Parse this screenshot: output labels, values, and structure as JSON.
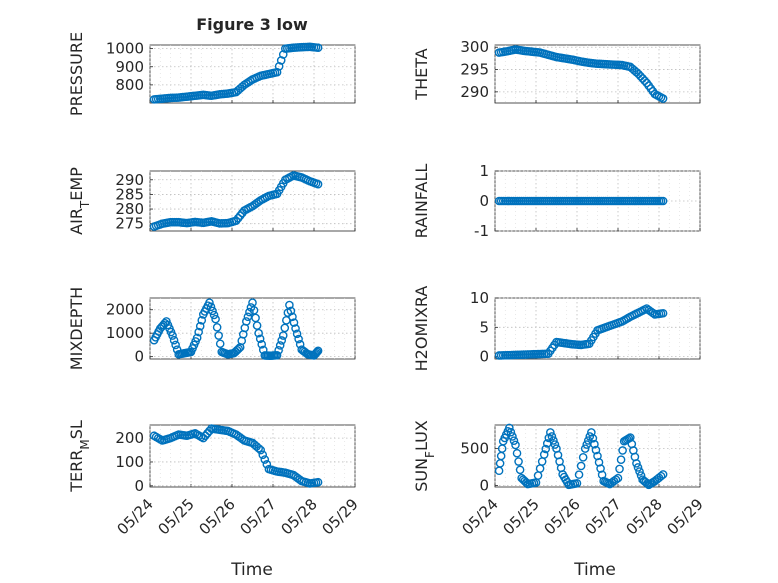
{
  "figure": {
    "title": "Figure 3 low",
    "xlabel": "Time",
    "color": "#0072bd"
  },
  "chart_data": [
    {
      "type": "scatter",
      "name": "pressure",
      "position": "left-1",
      "title": "Figure 3 low",
      "xlabel": "",
      "ylabel": "PRESSURE",
      "ylim": [
        700,
        1020
      ],
      "yticks": [
        800,
        900,
        1000
      ],
      "x": [
        0.1,
        0.3,
        0.5,
        0.7,
        0.9,
        1.1,
        1.3,
        1.5,
        1.7,
        1.9,
        2.1,
        2.3,
        2.5,
        2.7,
        2.9,
        3.1,
        3.3,
        3.5,
        3.7,
        3.9,
        4.1
      ],
      "y": [
        720,
        724,
        728,
        730,
        735,
        740,
        745,
        740,
        748,
        752,
        760,
        800,
        830,
        850,
        860,
        870,
        1000,
        1005,
        1008,
        1010,
        1005
      ]
    },
    {
      "type": "scatter",
      "name": "theta",
      "position": "right-1",
      "title": "",
      "xlabel": "",
      "ylabel": "THETA",
      "ylim": [
        287.5,
        300.5
      ],
      "yticks": [
        290,
        295,
        300
      ],
      "x": [
        0.1,
        0.3,
        0.5,
        0.7,
        0.9,
        1.1,
        1.3,
        1.5,
        1.7,
        1.9,
        2.1,
        2.3,
        2.5,
        2.7,
        2.9,
        3.1,
        3.3,
        3.5,
        3.7,
        3.9,
        4.1
      ],
      "y": [
        298.8,
        299.1,
        299.5,
        299.2,
        299.0,
        298.8,
        298.3,
        297.8,
        297.5,
        297.2,
        296.8,
        296.5,
        296.3,
        296.2,
        296.1,
        296.0,
        295.6,
        294.0,
        292.0,
        289.5,
        288.5
      ]
    },
    {
      "type": "scatter",
      "name": "air-temp",
      "position": "left-2",
      "title": "",
      "xlabel": "",
      "ylabel": "AIR_TEMP",
      "ylim": [
        272.5,
        293
      ],
      "yticks": [
        275,
        280,
        285,
        290
      ],
      "x": [
        0.1,
        0.3,
        0.5,
        0.7,
        0.9,
        1.1,
        1.3,
        1.5,
        1.7,
        1.9,
        2.1,
        2.3,
        2.5,
        2.7,
        2.9,
        3.1,
        3.3,
        3.5,
        3.7,
        3.9,
        4.1
      ],
      "y": [
        274,
        275,
        275.5,
        275.5,
        275.2,
        275.6,
        275.3,
        275.8,
        275.1,
        275.2,
        276,
        279.5,
        281,
        283,
        284.5,
        285.2,
        290,
        291.5,
        290.8,
        289.5,
        288.5
      ]
    },
    {
      "type": "scatter",
      "name": "rainfall",
      "position": "right-2",
      "title": "",
      "xlabel": "",
      "ylabel": "RAINFALL",
      "ylim": [
        -1,
        1
      ],
      "yticks": [
        -1,
        0,
        1
      ],
      "x": [
        0.1,
        0.3,
        0.5,
        0.7,
        0.9,
        1.1,
        1.3,
        1.5,
        1.7,
        1.9,
        2.1,
        2.3,
        2.5,
        2.7,
        2.9,
        3.1,
        3.3,
        3.5,
        3.7,
        3.9,
        4.1
      ],
      "y": [
        0,
        0,
        0,
        0,
        0,
        0,
        0,
        0,
        0,
        0,
        0,
        0,
        0,
        0,
        0,
        0,
        0,
        0,
        0,
        0,
        0
      ]
    },
    {
      "type": "scatter",
      "name": "mixdepth",
      "position": "left-3",
      "title": "",
      "xlabel": "",
      "ylabel": "MIXDEPTH",
      "ylim": [
        -100,
        2500
      ],
      "yticks": [
        0,
        1000,
        2000
      ],
      "x": [
        0.1,
        0.25,
        0.4,
        0.55,
        0.7,
        0.85,
        1.0,
        1.15,
        1.3,
        1.45,
        1.6,
        1.75,
        1.9,
        2.05,
        2.2,
        2.35,
        2.5,
        2.65,
        2.8,
        2.95,
        3.1,
        3.25,
        3.4,
        3.55,
        3.7,
        3.85,
        4.0,
        4.1
      ],
      "y": [
        700,
        1200,
        1500,
        900,
        100,
        150,
        200,
        800,
        1800,
        2300,
        1600,
        200,
        100,
        150,
        400,
        1500,
        2300,
        1000,
        50,
        40,
        60,
        900,
        2200,
        1200,
        300,
        100,
        50,
        250
      ]
    },
    {
      "type": "scatter",
      "name": "h2omixra",
      "position": "right-3",
      "title": "",
      "xlabel": "",
      "ylabel": "H2OMIXRA",
      "ylim": [
        -0.4,
        10
      ],
      "yticks": [
        0,
        5,
        10
      ],
      "x": [
        0.1,
        0.3,
        0.5,
        0.7,
        0.9,
        1.1,
        1.3,
        1.5,
        1.7,
        1.9,
        2.1,
        2.3,
        2.5,
        2.7,
        2.9,
        3.1,
        3.3,
        3.5,
        3.7,
        3.9,
        4.1
      ],
      "y": [
        0.2,
        0.25,
        0.3,
        0.35,
        0.4,
        0.45,
        0.5,
        2.5,
        2.3,
        2.1,
        2.0,
        2.2,
        4.5,
        5.0,
        5.5,
        6.0,
        6.8,
        7.5,
        8.2,
        7.2,
        7.4
      ]
    },
    {
      "type": "scatter",
      "name": "terr-msl",
      "position": "left-4",
      "title": "",
      "xlabel": "",
      "ylabel": "TERR_MSL",
      "ylim": [
        -5,
        255
      ],
      "yticks": [
        0,
        100,
        200
      ],
      "x": [
        0.1,
        0.3,
        0.5,
        0.7,
        0.9,
        1.1,
        1.3,
        1.5,
        1.7,
        1.9,
        2.1,
        2.3,
        2.5,
        2.7,
        2.9,
        3.1,
        3.3,
        3.5,
        3.7,
        3.9,
        4.1
      ],
      "y": [
        210,
        190,
        200,
        215,
        210,
        220,
        200,
        240,
        235,
        230,
        215,
        190,
        180,
        150,
        70,
        60,
        55,
        45,
        20,
        10,
        15
      ]
    },
    {
      "type": "scatter",
      "name": "sun-flux",
      "position": "right-4",
      "title": "",
      "xlabel": "",
      "ylabel": "SUN_FLUX",
      "ylim": [
        -20,
        820
      ],
      "yticks": [
        0,
        500
      ],
      "x": [
        0.1,
        0.2,
        0.35,
        0.5,
        0.65,
        0.8,
        1.0,
        1.2,
        1.35,
        1.5,
        1.65,
        1.8,
        2.0,
        2.2,
        2.35,
        2.5,
        2.65,
        2.8,
        3.0,
        3.15,
        3.3,
        3.45,
        3.6,
        3.75,
        3.9,
        4.1
      ],
      "y": [
        200,
        600,
        780,
        550,
        100,
        20,
        40,
        420,
        720,
        500,
        150,
        10,
        30,
        500,
        720,
        400,
        60,
        20,
        100,
        600,
        650,
        300,
        80,
        10,
        60,
        150
      ]
    }
  ],
  "x_axis": {
    "tick_labels": [
      "05/24",
      "05/25",
      "05/26",
      "05/27",
      "05/28",
      "05/29"
    ],
    "xlim": [
      0,
      5
    ]
  }
}
